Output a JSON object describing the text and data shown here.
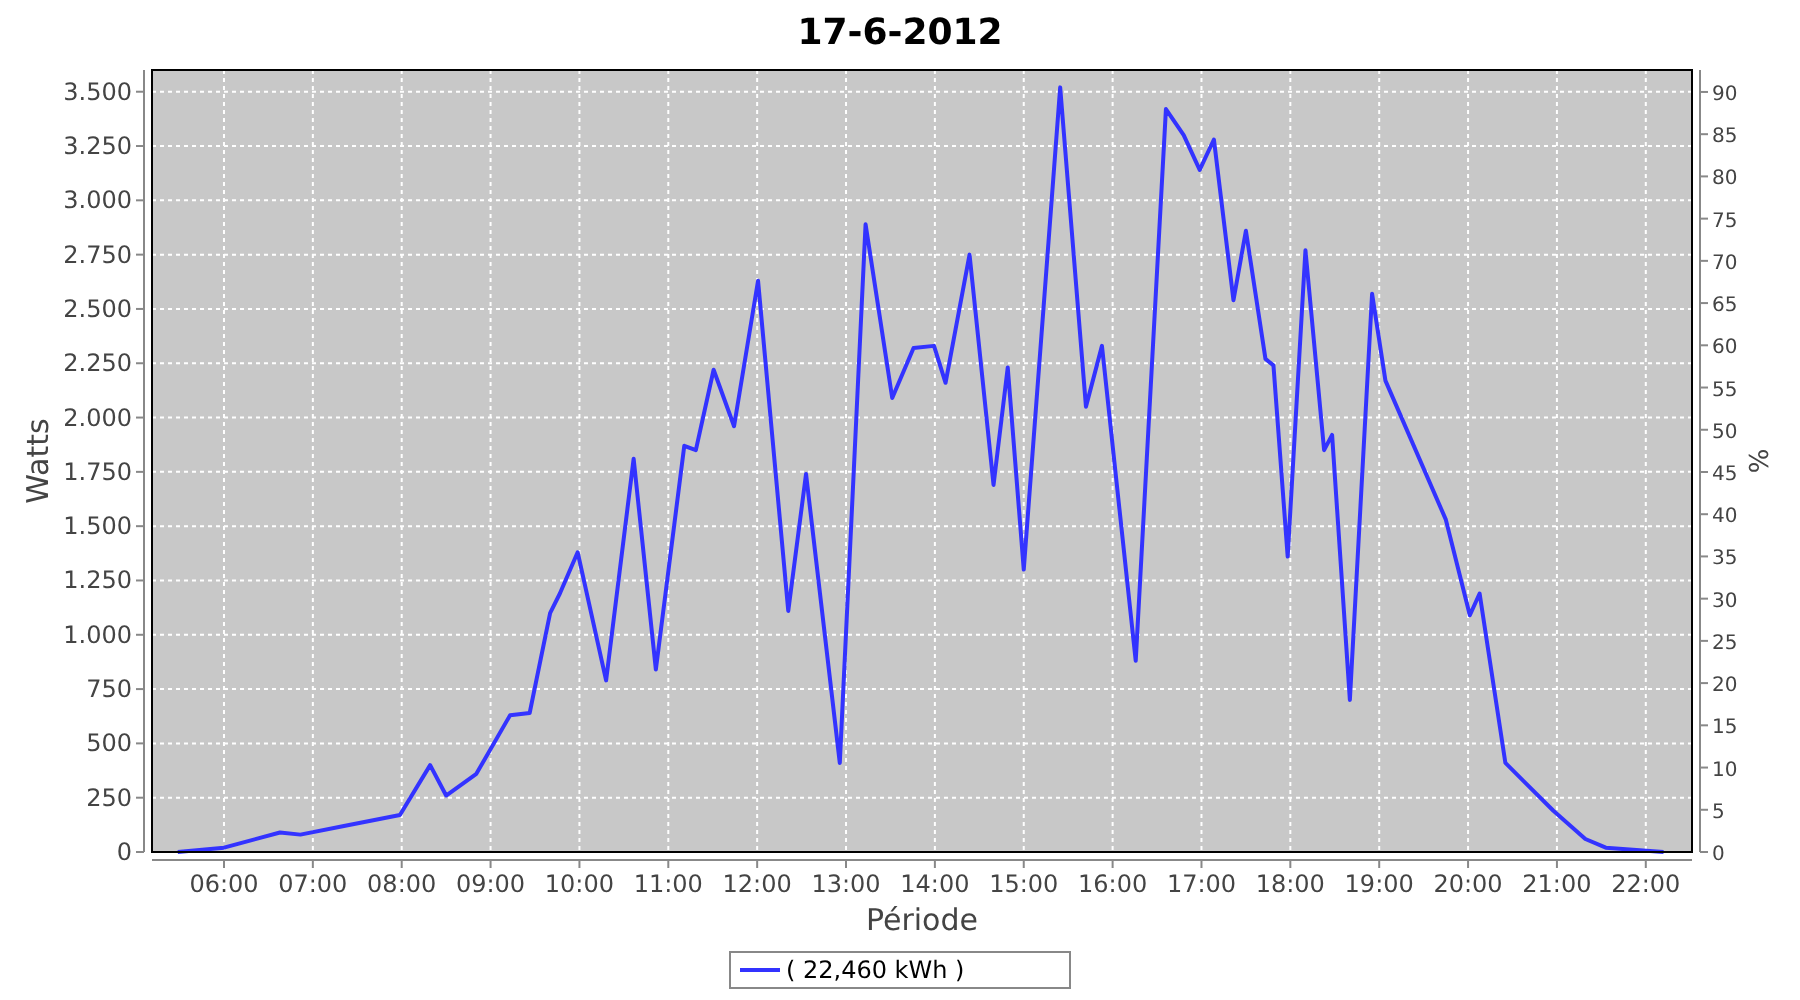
{
  "chart_data": {
    "type": "line",
    "title": "17-6-2012",
    "xlabel": "Période",
    "ylabel": "Watts",
    "y2label": "%",
    "x": [
      5.48,
      6.0,
      6.63,
      6.86,
      7.35,
      7.98,
      8.32,
      8.5,
      8.84,
      9.22,
      9.44,
      9.67,
      9.78,
      9.98,
      10.3,
      10.61,
      10.86,
      11.18,
      11.31,
      11.51,
      11.74,
      12.01,
      12.35,
      12.55,
      12.93,
      13.22,
      13.52,
      13.76,
      13.99,
      14.12,
      14.39,
      14.66,
      14.82,
      15.0,
      15.41,
      15.7,
      15.88,
      16.26,
      16.6,
      16.8,
      16.98,
      17.14,
      17.36,
      17.5,
      17.72,
      17.81,
      17.97,
      18.17,
      18.38,
      18.47,
      18.67,
      18.92,
      19.07,
      19.75,
      20.02,
      20.13,
      20.42,
      20.96,
      21.32,
      21.55,
      22.2
    ],
    "series": [
      {
        "name": "( 22,460 kWh )",
        "color": "#3333ff",
        "values": [
          0,
          20,
          90,
          80,
          120,
          170,
          400,
          260,
          360,
          630,
          640,
          1100,
          1190,
          1380,
          790,
          1810,
          840,
          1870,
          1850,
          2220,
          1960,
          2630,
          1110,
          1740,
          410,
          2890,
          2090,
          2320,
          2330,
          2160,
          2750,
          1690,
          2230,
          1300,
          3520,
          2050,
          2330,
          880,
          3420,
          3300,
          3140,
          3280,
          2540,
          2860,
          2270,
          2240,
          1360,
          2770,
          1850,
          1920,
          700,
          2570,
          2170,
          1530,
          1090,
          1190,
          410,
          190,
          60,
          20,
          0
        ]
      }
    ],
    "xlim": [
      5.19,
      22.52
    ],
    "xticks": [
      {
        "value": 6,
        "label": "06:00"
      },
      {
        "value": 7,
        "label": "07:00"
      },
      {
        "value": 8,
        "label": "08:00"
      },
      {
        "value": 9,
        "label": "09:00"
      },
      {
        "value": 10,
        "label": "10:00"
      },
      {
        "value": 11,
        "label": "11:00"
      },
      {
        "value": 12,
        "label": "12:00"
      },
      {
        "value": 13,
        "label": "13:00"
      },
      {
        "value": 14,
        "label": "14:00"
      },
      {
        "value": 15,
        "label": "15:00"
      },
      {
        "value": 16,
        "label": "16:00"
      },
      {
        "value": 17,
        "label": "17:00"
      },
      {
        "value": 18,
        "label": "18:00"
      },
      {
        "value": 19,
        "label": "19:00"
      },
      {
        "value": 20,
        "label": "20:00"
      },
      {
        "value": 21,
        "label": "21:00"
      },
      {
        "value": 22,
        "label": "22:00"
      }
    ],
    "ylim": [
      0,
      3600
    ],
    "yticks": [
      0,
      250,
      500,
      750,
      {
        "value": 1000,
        "label": "1.000"
      },
      {
        "value": 1250,
        "label": "1.250"
      },
      {
        "value": 1500,
        "label": "1.500"
      },
      {
        "value": 1750,
        "label": "1.750"
      },
      {
        "value": 2000,
        "label": "2.000"
      },
      {
        "value": 2250,
        "label": "2.250"
      },
      {
        "value": 2500,
        "label": "2.500"
      },
      {
        "value": 2750,
        "label": "2.750"
      },
      {
        "value": 3000,
        "label": "3.000"
      },
      {
        "value": 3250,
        "label": "3.250"
      },
      {
        "value": 3500,
        "label": "3.500"
      }
    ],
    "y2lim": [
      0,
      92.6
    ],
    "y2ticks": [
      0,
      5,
      10,
      15,
      20,
      25,
      30,
      35,
      40,
      45,
      50,
      55,
      60,
      65,
      70,
      75,
      80,
      85,
      90
    ],
    "grid": true,
    "legend": "bottom",
    "marker": "none",
    "line_style": "solid"
  }
}
